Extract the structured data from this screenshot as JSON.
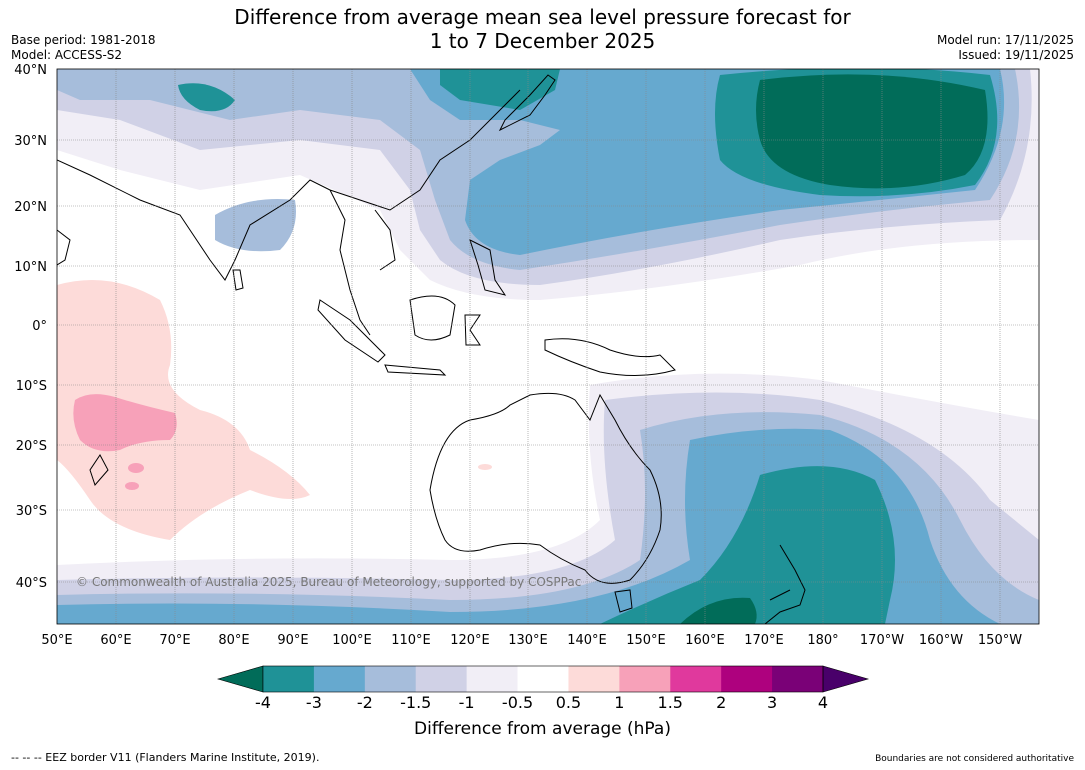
{
  "header": {
    "title_line1": "Difference from average mean sea level pressure forecast for",
    "title_line2": "1 to 7 December 2025",
    "base_period": "Base period: 1981-2018",
    "model": "Model: ACCESS-S2",
    "model_run": "Model run: 17/11/2025",
    "issued": "Issued: 19/11/2025"
  },
  "map": {
    "copyright": "© Commonwealth of Australia 2025, Bureau of Meteorology, supported by COSPPac",
    "lat_labels": [
      "40°N",
      "30°N",
      "20°N",
      "10°N",
      "0°",
      "10°S",
      "20°S",
      "30°S",
      "40°S"
    ],
    "lon_labels": [
      "50°E",
      "60°E",
      "70°E",
      "80°E",
      "90°E",
      "100°E",
      "110°E",
      "120°E",
      "130°E",
      "140°E",
      "150°E",
      "160°E",
      "170°E",
      "180°",
      "170°W",
      "160°W",
      "150°W"
    ]
  },
  "colorbar": {
    "ticks": [
      "-4",
      "-3",
      "-2",
      "-1.5",
      "-1",
      "-0.5",
      "0.5",
      "1",
      "1.5",
      "2",
      "3",
      "4"
    ],
    "colors": [
      "#1f9297",
      "#66a9cf",
      "#a6bddb",
      "#d0d1e6",
      "#f1eef6",
      "#ffffff",
      "#fddbd9",
      "#f7a1b9",
      "#e0399d",
      "#ae017e",
      "#7a0177"
    ],
    "under_color": "#016c59",
    "over_color": "#49006a",
    "label": "Difference from average (hPa)"
  },
  "footer": {
    "eez": "--  --  -- EEZ border V11 (Flanders Marine Institute, 2019).",
    "disclaimer": "Boundaries are not considered authoritative"
  }
}
